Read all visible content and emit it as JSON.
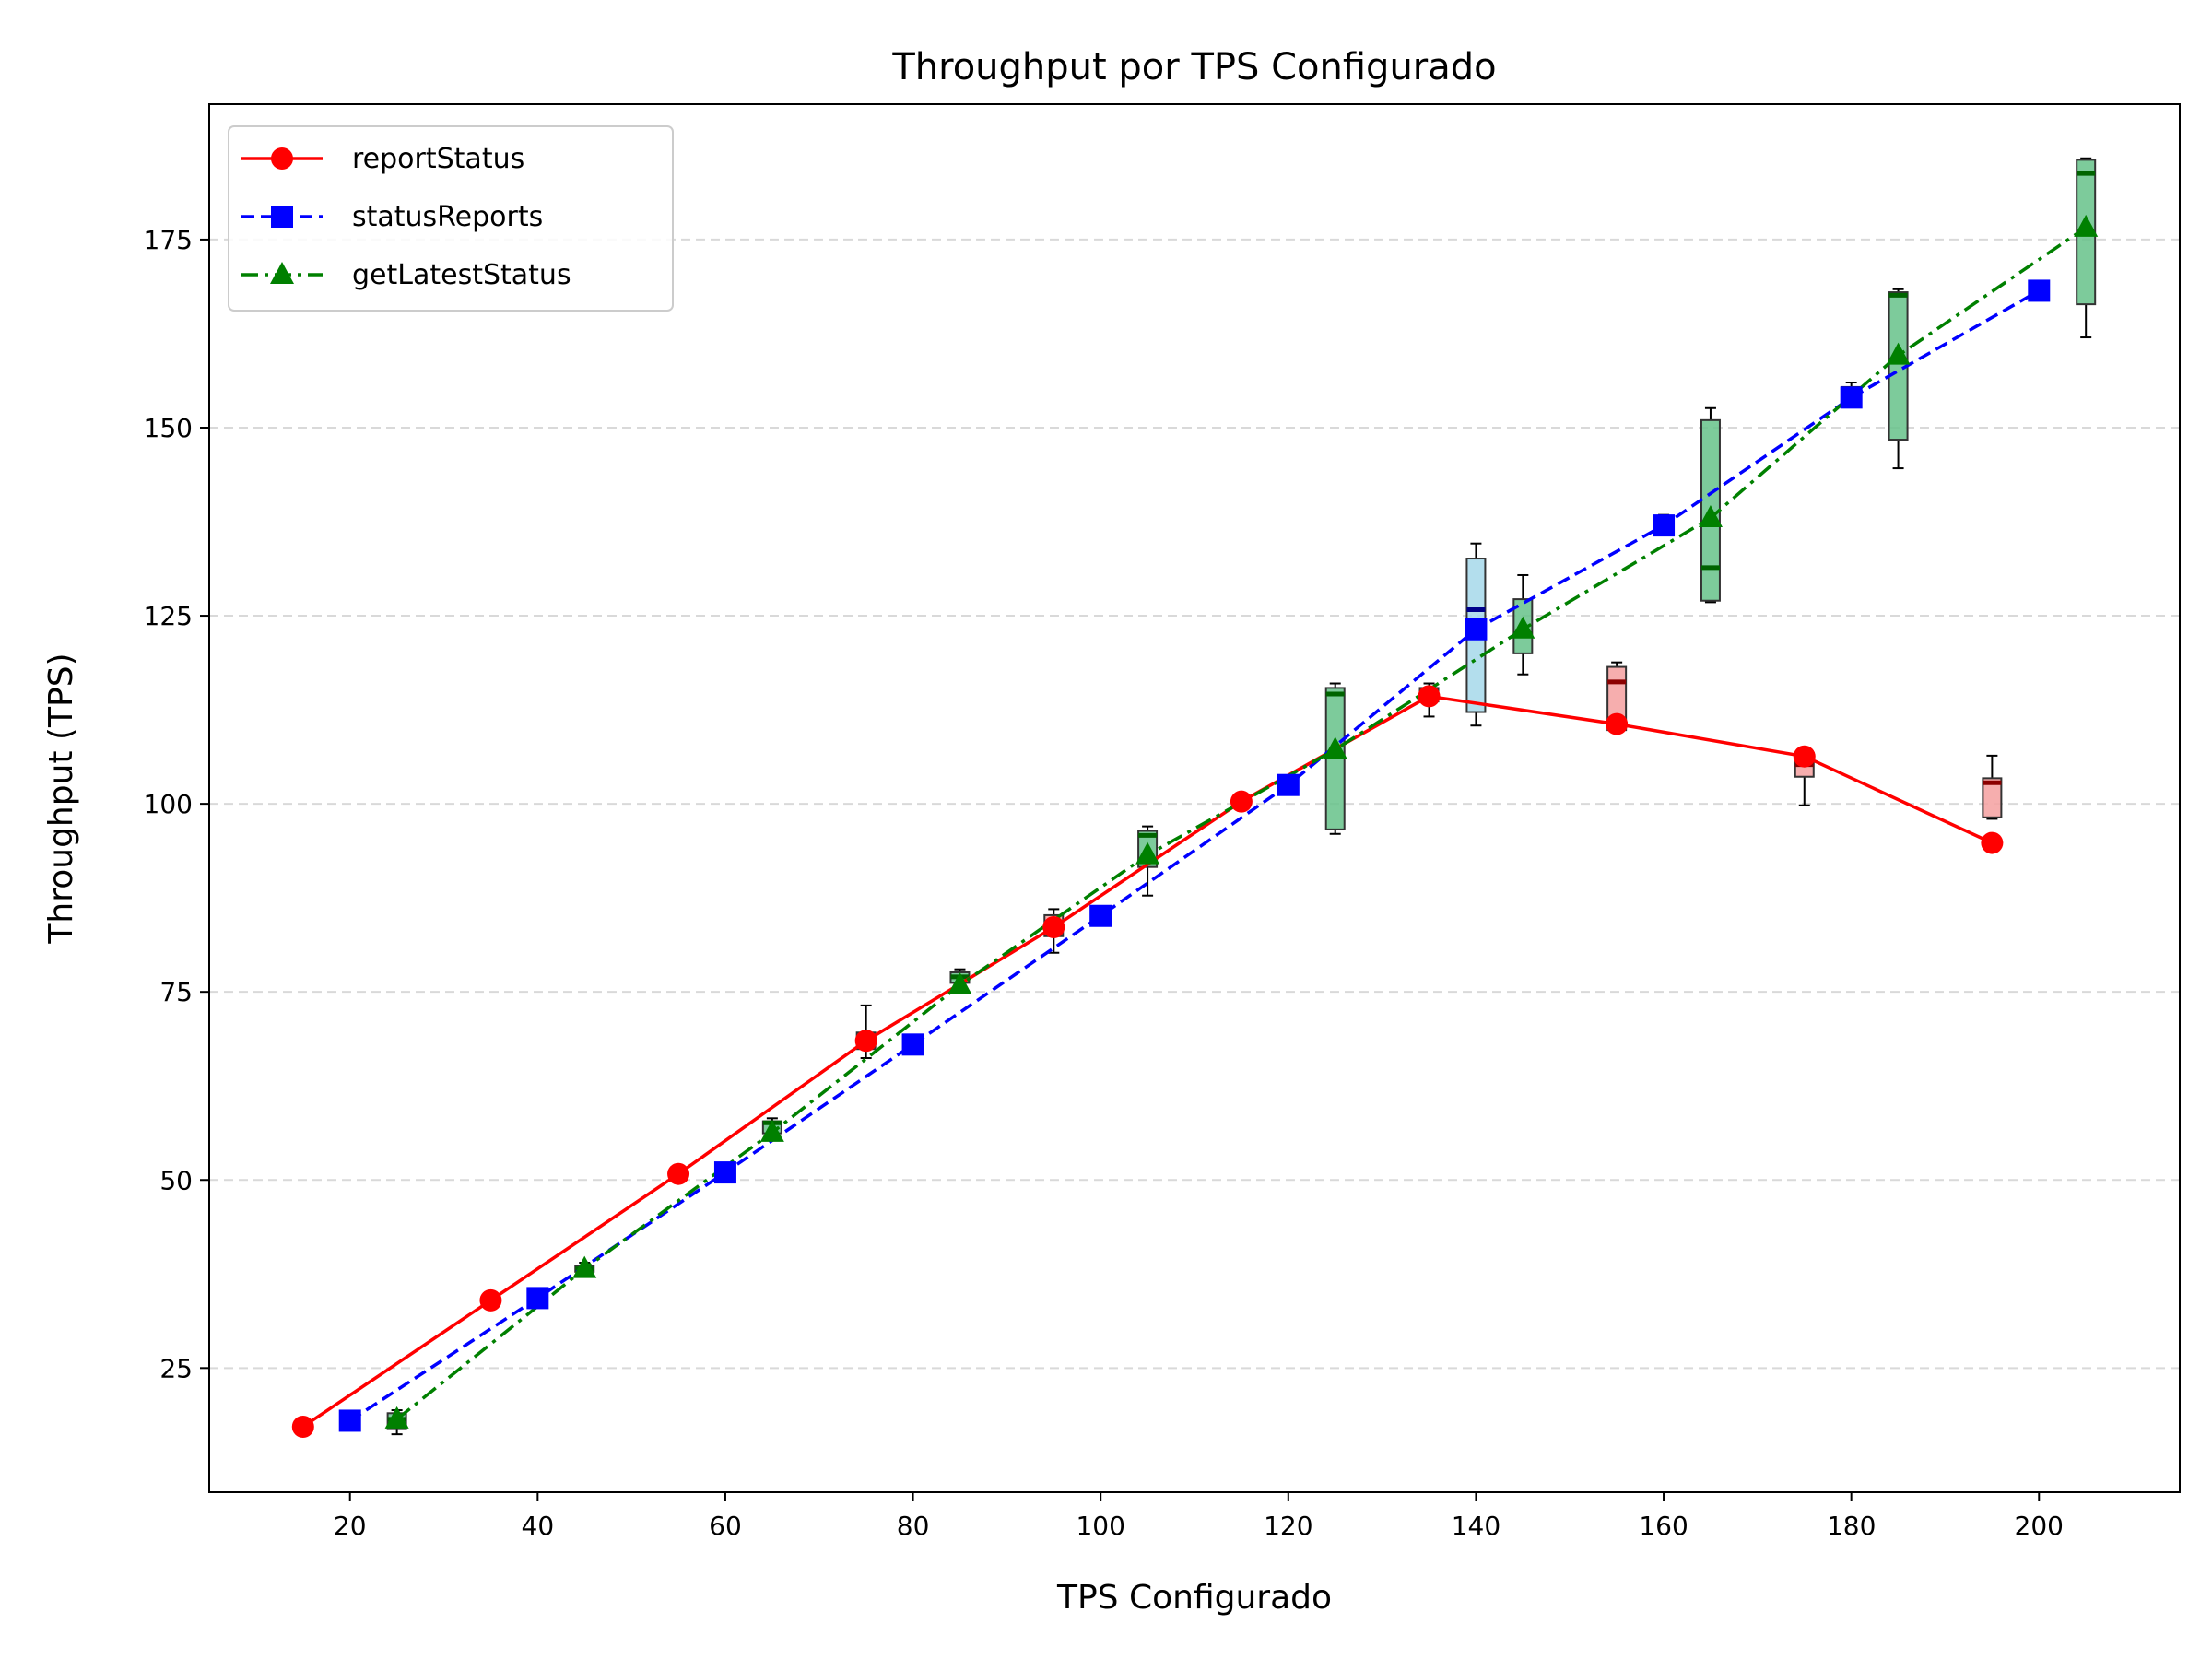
{
  "chart_data": {
    "type": "line",
    "title": "Throughput por TPS Configurado",
    "xlabel": "TPS Configurado",
    "ylabel": "Throughput (TPS)",
    "xlim": [
      5,
      215
    ],
    "ylim": [
      8.5,
      193
    ],
    "xticks": [
      20,
      40,
      60,
      80,
      100,
      120,
      140,
      160,
      180,
      200
    ],
    "yticks": [
      25,
      50,
      75,
      100,
      125,
      150,
      175
    ],
    "grid": "y-dashed",
    "legend_position": "top-left",
    "series": [
      {
        "name": "reportStatus",
        "color": "#ff0000",
        "box_color": "#f4a0a0",
        "line_style": "solid",
        "marker": "circle",
        "x": [
          15,
          35,
          55,
          75,
          95,
          115,
          135,
          155,
          175,
          195
        ],
        "y": [
          17.2,
          34.0,
          50.8,
          68.5,
          83.6,
          100.3,
          114.3,
          110.6,
          106.3,
          94.8
        ],
        "boxes": [
          {
            "x": 15,
            "whisker_low": 16.8,
            "q1": 17.0,
            "median": 17.2,
            "q3": 17.4,
            "whisker_high": 17.6
          },
          {
            "x": 35,
            "whisker_low": 33.6,
            "q1": 33.8,
            "median": 34.0,
            "q3": 34.2,
            "whisker_high": 34.4
          },
          {
            "x": 55,
            "whisker_low": 50.4,
            "q1": 50.6,
            "median": 50.8,
            "q3": 51.0,
            "whisker_high": 51.2
          },
          {
            "x": 75,
            "whisker_low": 66.2,
            "q1": 67.4,
            "median": 68.6,
            "q3": 69.6,
            "whisker_high": 73.2
          },
          {
            "x": 95,
            "whisker_low": 80.2,
            "q1": 82.4,
            "median": 83.8,
            "q3": 85.2,
            "whisker_high": 86.0
          },
          {
            "x": 115,
            "whisker_low": 99.6,
            "q1": 99.9,
            "median": 100.2,
            "q3": 100.5,
            "whisker_high": 100.8
          },
          {
            "x": 135,
            "whisker_low": 111.6,
            "q1": 113.6,
            "median": 114.6,
            "q3": 115.4,
            "whisker_high": 116.0
          },
          {
            "x": 155,
            "whisker_low": 109.6,
            "q1": 109.8,
            "median": 116.2,
            "q3": 118.2,
            "whisker_high": 118.8
          },
          {
            "x": 175,
            "whisker_low": 99.8,
            "q1": 103.6,
            "median": 105.2,
            "q3": 106.0,
            "whisker_high": 106.6
          },
          {
            "x": 195,
            "whisker_low": 98.0,
            "q1": 98.2,
            "median": 102.8,
            "q3": 103.4,
            "whisker_high": 106.4
          }
        ]
      },
      {
        "name": "statusReports",
        "color": "#0000ff",
        "box_color": "#a6d8ea",
        "line_style": "dashed",
        "marker": "square",
        "x": [
          20,
          40,
          60,
          80,
          100,
          120,
          140,
          160,
          180,
          200
        ],
        "y": [
          18.0,
          34.3,
          51.0,
          68.0,
          85.1,
          102.5,
          123.2,
          137.0,
          154.0,
          168.2
        ],
        "boxes": [
          {
            "x": 20,
            "whisker_low": 17.6,
            "q1": 17.8,
            "median": 18.0,
            "q3": 18.2,
            "whisker_high": 18.4
          },
          {
            "x": 40,
            "whisker_low": 33.9,
            "q1": 34.1,
            "median": 34.3,
            "q3": 34.5,
            "whisker_high": 34.7
          },
          {
            "x": 60,
            "whisker_low": 50.6,
            "q1": 50.8,
            "median": 51.0,
            "q3": 51.2,
            "whisker_high": 51.4
          },
          {
            "x": 80,
            "whisker_low": 67.6,
            "q1": 67.8,
            "median": 68.0,
            "q3": 68.2,
            "whisker_high": 68.4
          },
          {
            "x": 100,
            "whisker_low": 84.7,
            "q1": 84.9,
            "median": 85.1,
            "q3": 85.3,
            "whisker_high": 85.5
          },
          {
            "x": 120,
            "whisker_low": 102.1,
            "q1": 102.3,
            "median": 102.5,
            "q3": 102.7,
            "whisker_high": 102.9
          },
          {
            "x": 140,
            "whisker_low": 110.4,
            "q1": 112.2,
            "median": 125.8,
            "q3": 132.6,
            "whisker_high": 134.6
          },
          {
            "x": 160,
            "whisker_low": 135.8,
            "q1": 136.2,
            "median": 137.4,
            "q3": 138.0,
            "whisker_high": 138.4
          },
          {
            "x": 180,
            "whisker_low": 153.2,
            "q1": 153.6,
            "median": 154.2,
            "q3": 155.4,
            "whisker_high": 156.0
          },
          {
            "x": 200,
            "whisker_low": 167.8,
            "q1": 168.0,
            "median": 168.2,
            "q3": 168.4,
            "whisker_high": 168.6
          }
        ]
      },
      {
        "name": "getLatestStatus",
        "color": "#008000",
        "box_color": "#66c28a",
        "line_style": "dashdot",
        "marker": "triangle",
        "x": [
          25,
          45,
          65,
          85,
          105,
          125,
          145,
          165,
          185,
          205
        ],
        "y": [
          18.2,
          38.2,
          56.3,
          75.9,
          93.2,
          107.2,
          123.2,
          138.0,
          159.6,
          176.6
        ],
        "boxes": [
          {
            "x": 25,
            "whisker_low": 16.2,
            "q1": 17.0,
            "median": 18.2,
            "q3": 19.0,
            "whisker_high": 19.4
          },
          {
            "x": 45,
            "whisker_low": 37.6,
            "q1": 37.8,
            "median": 38.2,
            "q3": 38.6,
            "whisker_high": 39.0
          },
          {
            "x": 65,
            "whisker_low": 55.8,
            "q1": 56.2,
            "median": 57.6,
            "q3": 57.8,
            "whisker_high": 58.2
          },
          {
            "x": 85,
            "whisker_low": 75.6,
            "q1": 76.2,
            "median": 77.0,
            "q3": 77.6,
            "whisker_high": 78.0
          },
          {
            "x": 105,
            "whisker_low": 87.8,
            "q1": 91.6,
            "median": 95.8,
            "q3": 96.4,
            "whisker_high": 97.0
          },
          {
            "x": 125,
            "whisker_low": 96.0,
            "q1": 96.6,
            "median": 114.6,
            "q3": 115.4,
            "whisker_high": 116.0
          },
          {
            "x": 145,
            "whisker_low": 117.2,
            "q1": 120.0,
            "median": 122.6,
            "q3": 127.2,
            "whisker_high": 130.4
          },
          {
            "x": 165,
            "whisker_low": 126.8,
            "q1": 127.0,
            "median": 131.4,
            "q3": 151.0,
            "whisker_high": 152.6
          },
          {
            "x": 185,
            "whisker_low": 144.6,
            "q1": 148.4,
            "median": 167.6,
            "q3": 168.0,
            "whisker_high": 168.4
          },
          {
            "x": 205,
            "whisker_low": 162.0,
            "q1": 166.4,
            "median": 183.8,
            "q3": 185.6,
            "whisker_high": 185.8
          }
        ]
      }
    ]
  }
}
